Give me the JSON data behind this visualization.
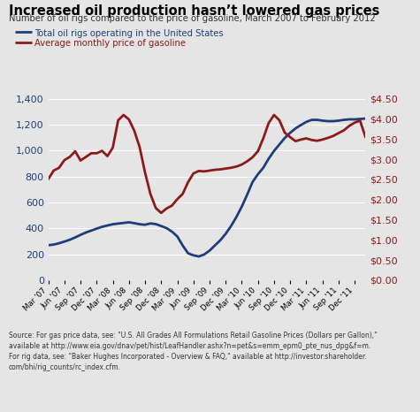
{
  "title": "Increased oil production hasn’t lowered gas prices",
  "subtitle": "Number of oil rigs compared to the price of gasoline, March 2007 to February 2012",
  "legend": [
    "Total oil rigs operating in the United States",
    "Average monthly price of gasoline"
  ],
  "source": "Source: For gas price data, see: \"U.S. All Grades All Formulations Retail Gasoline Prices (Dollars per Gallon),\"\navailable at http://www.eia.gov/dnav/pet/hist/LeafHandler.ashx?n=pet&s=emm_epm0_pte_nus_dpg&f=m.\nFor rig data, see: \"Baker Hughes Incorporated - Overview & FAQ,\" available at http://investor.shareholder.\ncom/bhi/rig_counts/rc_index.cfm.",
  "xtick_labels": [
    "Mar '07",
    "Jun '07",
    "Sep '07",
    "Dec '07",
    "Mar '08",
    "Jun '08",
    "Sep '08",
    "Dec '08",
    "Mar '09",
    "Jun '09",
    "Sep '09",
    "Dec '09",
    "Mar '10",
    "Jun '10",
    "Sep '10",
    "Dec '10",
    "Mar '11",
    "Jun '11",
    "Sep '11",
    "Dec '11"
  ],
  "rigs": [
    270,
    275,
    285,
    298,
    312,
    330,
    350,
    368,
    383,
    398,
    412,
    422,
    432,
    437,
    442,
    447,
    440,
    432,
    428,
    438,
    433,
    418,
    402,
    375,
    338,
    268,
    208,
    192,
    183,
    198,
    228,
    268,
    308,
    358,
    418,
    488,
    568,
    660,
    758,
    818,
    868,
    938,
    998,
    1048,
    1098,
    1138,
    1172,
    1198,
    1222,
    1238,
    1238,
    1232,
    1228,
    1228,
    1232,
    1238,
    1242,
    1242,
    1245,
    1248
  ],
  "gas": [
    2.51,
    2.72,
    2.79,
    2.98,
    3.06,
    3.2,
    2.97,
    3.06,
    3.15,
    3.15,
    3.21,
    3.08,
    3.29,
    3.97,
    4.1,
    3.99,
    3.71,
    3.3,
    2.67,
    2.14,
    1.79,
    1.67,
    1.78,
    1.85,
    2.01,
    2.14,
    2.43,
    2.65,
    2.71,
    2.7,
    2.72,
    2.74,
    2.75,
    2.77,
    2.79,
    2.82,
    2.87,
    2.95,
    3.05,
    3.2,
    3.52,
    3.9,
    4.1,
    3.97,
    3.66,
    3.55,
    3.45,
    3.49,
    3.52,
    3.48,
    3.46,
    3.49,
    3.53,
    3.58,
    3.65,
    3.72,
    3.83,
    3.91,
    3.96,
    3.56
  ],
  "rigs_color": "#1f3d7a",
  "gas_color": "#8b1a1a",
  "ylim_left": [
    0,
    1400
  ],
  "ylim_right": [
    0.0,
    4.5
  ],
  "yticks_left": [
    0,
    200,
    400,
    600,
    800,
    1000,
    1200,
    1400
  ],
  "yticks_right": [
    0.0,
    0.5,
    1.0,
    1.5,
    2.0,
    2.5,
    3.0,
    3.5,
    4.0,
    4.5
  ],
  "bg_color": "#e5e5e5",
  "plot_bg_color": "#e5e5e5",
  "title_color": "#000000",
  "subtitle_color": "#333333",
  "linewidth": 2.0
}
